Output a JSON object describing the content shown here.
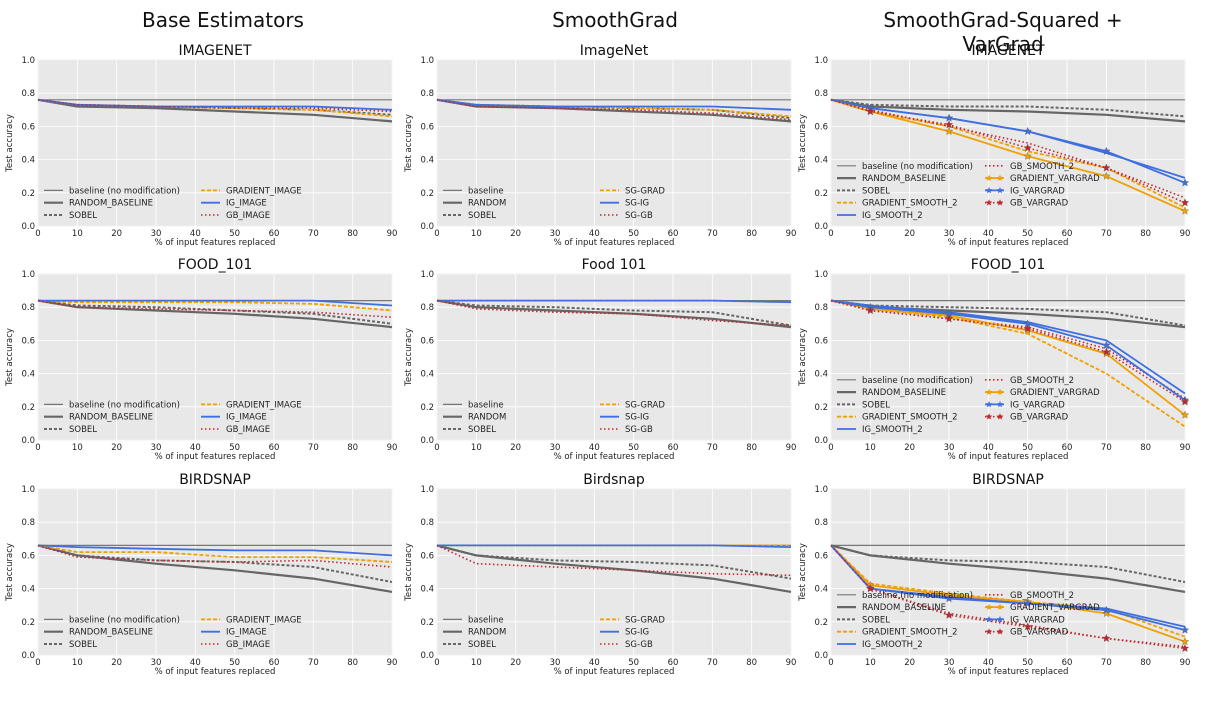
{
  "column_titles": [
    "Base Estimators",
    "SmoothGrad",
    "SmoothGrad-Squared + VarGrad"
  ],
  "chart_data": [
    {
      "type": "line",
      "title": "IMAGENET",
      "xlabel": "% of input features replaced",
      "ylabel": "Test accuracy",
      "x": [
        0,
        10,
        30,
        50,
        70,
        90
      ],
      "xticks": [
        0,
        10,
        20,
        30,
        40,
        50,
        60,
        70,
        80,
        90
      ],
      "ylim": [
        0,
        1.0
      ],
      "yticks": [
        0.0,
        0.2,
        0.4,
        0.6,
        0.8,
        1.0
      ],
      "legend_columns": 2,
      "series": [
        {
          "name": "baseline (no modification)",
          "style": "baseline",
          "values": [
            0.76,
            0.76,
            0.76,
            0.76,
            0.76,
            0.76
          ]
        },
        {
          "name": "RANDOM_BASELINE",
          "style": "random",
          "values": [
            0.76,
            0.72,
            0.71,
            0.69,
            0.67,
            0.63
          ]
        },
        {
          "name": "SOBEL",
          "style": "sobel",
          "values": [
            0.76,
            0.73,
            0.72,
            0.71,
            0.7,
            0.67
          ]
        },
        {
          "name": "GRADIENT_IMAGE",
          "style": "gradient",
          "values": [
            0.76,
            0.73,
            0.72,
            0.71,
            0.7,
            0.66
          ]
        },
        {
          "name": "IG_IMAGE",
          "style": "ig",
          "values": [
            0.76,
            0.73,
            0.72,
            0.72,
            0.72,
            0.7
          ]
        },
        {
          "name": "GB_IMAGE",
          "style": "gb",
          "values": [
            0.76,
            0.73,
            0.72,
            0.71,
            0.71,
            0.69
          ]
        }
      ]
    },
    {
      "type": "line",
      "title": "ImageNet",
      "xlabel": "% of input features replaced",
      "ylabel": "Test accuracy",
      "x": [
        0,
        10,
        30,
        50,
        70,
        90
      ],
      "xticks": [
        0,
        10,
        20,
        30,
        40,
        50,
        60,
        70,
        80,
        90
      ],
      "ylim": [
        0,
        1.0
      ],
      "yticks": [
        0.0,
        0.2,
        0.4,
        0.6,
        0.8,
        1.0
      ],
      "legend_columns": 2,
      "series": [
        {
          "name": "baseline",
          "style": "baseline",
          "values": [
            0.76,
            0.76,
            0.76,
            0.76,
            0.76,
            0.76
          ]
        },
        {
          "name": "RANDOM",
          "style": "random",
          "values": [
            0.76,
            0.72,
            0.71,
            0.69,
            0.67,
            0.63
          ]
        },
        {
          "name": "SOBEL",
          "style": "sobel",
          "values": [
            0.76,
            0.73,
            0.72,
            0.71,
            0.7,
            0.65
          ]
        },
        {
          "name": "SG-GRAD",
          "style": "gradient",
          "values": [
            0.76,
            0.73,
            0.72,
            0.71,
            0.7,
            0.66
          ]
        },
        {
          "name": "SG-IG",
          "style": "ig",
          "values": [
            0.76,
            0.73,
            0.72,
            0.72,
            0.72,
            0.7
          ]
        },
        {
          "name": "SG-GB",
          "style": "gb",
          "values": [
            0.76,
            0.72,
            0.71,
            0.7,
            0.68,
            0.64
          ]
        }
      ]
    },
    {
      "type": "line",
      "title": "IMAGENET",
      "xlabel": "% of input features replaced",
      "ylabel": "Test accuracy",
      "x": [
        0,
        10,
        30,
        50,
        70,
        90
      ],
      "xticks": [
        0,
        10,
        20,
        30,
        40,
        50,
        60,
        70,
        80,
        90
      ],
      "ylim": [
        0,
        1.0
      ],
      "yticks": [
        0.0,
        0.2,
        0.4,
        0.6,
        0.8,
        1.0
      ],
      "legend_columns": 2,
      "series": [
        {
          "name": "baseline (no modification)",
          "style": "baseline",
          "values": [
            0.76,
            0.76,
            0.76,
            0.76,
            0.76,
            0.76
          ]
        },
        {
          "name": "RANDOM_BASELINE",
          "style": "random",
          "values": [
            0.76,
            0.72,
            0.7,
            0.69,
            0.67,
            0.63
          ]
        },
        {
          "name": "SOBEL",
          "style": "sobel",
          "values": [
            0.76,
            0.73,
            0.72,
            0.72,
            0.7,
            0.66
          ]
        },
        {
          "name": "GRADIENT_SMOOTH_2",
          "style": "gradient",
          "values": [
            0.76,
            0.69,
            0.6,
            0.45,
            0.35,
            0.11
          ]
        },
        {
          "name": "IG_SMOOTH_2",
          "style": "ig",
          "values": [
            0.76,
            0.71,
            0.65,
            0.57,
            0.44,
            0.29
          ]
        },
        {
          "name": "GB_SMOOTH_2",
          "style": "gb",
          "values": [
            0.76,
            0.7,
            0.6,
            0.5,
            0.35,
            0.17
          ]
        },
        {
          "name": "GRADIENT_VARGRAD",
          "style": "gradient_star",
          "values": [
            0.76,
            0.69,
            0.57,
            0.42,
            0.3,
            0.09
          ]
        },
        {
          "name": "IG_VARGRAD",
          "style": "ig_star",
          "values": [
            0.76,
            0.71,
            0.65,
            0.57,
            0.45,
            0.26
          ]
        },
        {
          "name": "GB_VARGRAD",
          "style": "gb_star",
          "values": [
            0.76,
            0.69,
            0.61,
            0.47,
            0.35,
            0.14
          ]
        }
      ]
    },
    {
      "type": "line",
      "title": "FOOD_101",
      "xlabel": "% of input features replaced",
      "ylabel": "Test accuracy",
      "x": [
        0,
        10,
        30,
        50,
        70,
        90
      ],
      "xticks": [
        0,
        10,
        20,
        30,
        40,
        50,
        60,
        70,
        80,
        90
      ],
      "ylim": [
        0,
        1.0
      ],
      "yticks": [
        0.0,
        0.2,
        0.4,
        0.6,
        0.8,
        1.0
      ],
      "legend_columns": 2,
      "series": [
        {
          "name": "baseline (no modification)",
          "style": "baseline",
          "values": [
            0.84,
            0.84,
            0.84,
            0.84,
            0.84,
            0.84
          ]
        },
        {
          "name": "RANDOM_BASELINE",
          "style": "random",
          "values": [
            0.84,
            0.8,
            0.78,
            0.76,
            0.73,
            0.68
          ]
        },
        {
          "name": "SOBEL",
          "style": "sobel",
          "values": [
            0.84,
            0.81,
            0.8,
            0.78,
            0.76,
            0.7
          ]
        },
        {
          "name": "GRADIENT_IMAGE",
          "style": "gradient",
          "values": [
            0.84,
            0.83,
            0.83,
            0.83,
            0.82,
            0.78
          ]
        },
        {
          "name": "IG_IMAGE",
          "style": "ig",
          "values": [
            0.84,
            0.84,
            0.84,
            0.84,
            0.84,
            0.81
          ]
        },
        {
          "name": "GB_IMAGE",
          "style": "gb",
          "values": [
            0.84,
            0.8,
            0.79,
            0.78,
            0.77,
            0.74
          ]
        }
      ]
    },
    {
      "type": "line",
      "title": "Food 101",
      "xlabel": "% of input features replaced",
      "ylabel": "Test accuracy",
      "x": [
        0,
        10,
        30,
        50,
        70,
        90
      ],
      "xticks": [
        0,
        10,
        20,
        30,
        40,
        50,
        60,
        70,
        80,
        90
      ],
      "ylim": [
        0,
        1.0
      ],
      "yticks": [
        0.0,
        0.2,
        0.4,
        0.6,
        0.8,
        1.0
      ],
      "legend_columns": 2,
      "series": [
        {
          "name": "baseline",
          "style": "baseline",
          "values": [
            0.84,
            0.84,
            0.84,
            0.84,
            0.84,
            0.84
          ]
        },
        {
          "name": "RANDOM",
          "style": "random",
          "values": [
            0.84,
            0.8,
            0.78,
            0.76,
            0.73,
            0.68
          ]
        },
        {
          "name": "SOBEL",
          "style": "sobel",
          "values": [
            0.84,
            0.81,
            0.8,
            0.78,
            0.77,
            0.69
          ]
        },
        {
          "name": "SG-GRAD",
          "style": "gradient",
          "values": [
            0.84,
            0.84,
            0.84,
            0.84,
            0.84,
            0.83
          ]
        },
        {
          "name": "SG-IG",
          "style": "ig",
          "values": [
            0.84,
            0.84,
            0.84,
            0.84,
            0.84,
            0.83
          ]
        },
        {
          "name": "SG-GB",
          "style": "gb",
          "values": [
            0.84,
            0.79,
            0.77,
            0.76,
            0.72,
            0.69
          ]
        }
      ]
    },
    {
      "type": "line",
      "title": "FOOD_101",
      "xlabel": "% of input features replaced",
      "ylabel": "Test accuracy",
      "x": [
        0,
        10,
        30,
        50,
        70,
        90
      ],
      "xticks": [
        0,
        10,
        20,
        30,
        40,
        50,
        60,
        70,
        80,
        90
      ],
      "ylim": [
        0,
        1.0
      ],
      "yticks": [
        0.0,
        0.2,
        0.4,
        0.6,
        0.8,
        1.0
      ],
      "legend_columns": 2,
      "series": [
        {
          "name": "baseline (no modification)",
          "style": "baseline",
          "values": [
            0.84,
            0.84,
            0.84,
            0.84,
            0.84,
            0.84
          ]
        },
        {
          "name": "RANDOM_BASELINE",
          "style": "random",
          "values": [
            0.84,
            0.8,
            0.78,
            0.76,
            0.73,
            0.68
          ]
        },
        {
          "name": "SOBEL",
          "style": "sobel",
          "values": [
            0.84,
            0.81,
            0.8,
            0.79,
            0.77,
            0.69
          ]
        },
        {
          "name": "GRADIENT_SMOOTH_2",
          "style": "gradient",
          "values": [
            0.84,
            0.79,
            0.74,
            0.64,
            0.4,
            0.08
          ]
        },
        {
          "name": "IG_SMOOTH_2",
          "style": "ig",
          "values": [
            0.84,
            0.81,
            0.77,
            0.71,
            0.6,
            0.28
          ]
        },
        {
          "name": "GB_SMOOTH_2",
          "style": "gb",
          "values": [
            0.84,
            0.78,
            0.73,
            0.68,
            0.55,
            0.25
          ]
        },
        {
          "name": "GRADIENT_VARGRAD",
          "style": "gradient_star",
          "values": [
            0.84,
            0.79,
            0.75,
            0.66,
            0.52,
            0.15
          ]
        },
        {
          "name": "IG_VARGRAD",
          "style": "ig_star",
          "values": [
            0.84,
            0.8,
            0.76,
            0.7,
            0.57,
            0.24
          ]
        },
        {
          "name": "GB_VARGRAD",
          "style": "gb_star",
          "values": [
            0.84,
            0.78,
            0.73,
            0.67,
            0.53,
            0.23
          ]
        }
      ]
    },
    {
      "type": "line",
      "title": "BIRDSNAP",
      "xlabel": "% of input features replaced",
      "ylabel": "Test accuracy",
      "x": [
        0,
        10,
        30,
        50,
        70,
        90
      ],
      "xticks": [
        0,
        10,
        20,
        30,
        40,
        50,
        60,
        70,
        80,
        90
      ],
      "ylim": [
        0,
        1.0
      ],
      "yticks": [
        0.0,
        0.2,
        0.4,
        0.6,
        0.8,
        1.0
      ],
      "legend_columns": 2,
      "series": [
        {
          "name": "baseline (no modification)",
          "style": "baseline",
          "values": [
            0.66,
            0.66,
            0.66,
            0.66,
            0.66,
            0.66
          ]
        },
        {
          "name": "RANDOM_BASELINE",
          "style": "random",
          "values": [
            0.66,
            0.6,
            0.55,
            0.51,
            0.46,
            0.38
          ]
        },
        {
          "name": "SOBEL",
          "style": "sobel",
          "values": [
            0.66,
            0.6,
            0.57,
            0.56,
            0.53,
            0.44
          ]
        },
        {
          "name": "GRADIENT_IMAGE",
          "style": "gradient",
          "values": [
            0.66,
            0.62,
            0.62,
            0.59,
            0.59,
            0.56
          ]
        },
        {
          "name": "IG_IMAGE",
          "style": "ig",
          "values": [
            0.66,
            0.65,
            0.64,
            0.63,
            0.63,
            0.6
          ]
        },
        {
          "name": "GB_IMAGE",
          "style": "gb",
          "values": [
            0.66,
            0.59,
            0.57,
            0.56,
            0.57,
            0.53
          ]
        }
      ]
    },
    {
      "type": "line",
      "title": "Birdsnap",
      "xlabel": "% of input features replaced",
      "ylabel": "Test accuracy",
      "x": [
        0,
        10,
        30,
        50,
        70,
        90
      ],
      "xticks": [
        0,
        10,
        20,
        30,
        40,
        50,
        60,
        70,
        80,
        90
      ],
      "ylim": [
        0,
        1.0
      ],
      "yticks": [
        0.0,
        0.2,
        0.4,
        0.6,
        0.8,
        1.0
      ],
      "legend_columns": 2,
      "series": [
        {
          "name": "baseline",
          "style": "baseline",
          "values": [
            0.66,
            0.66,
            0.66,
            0.66,
            0.66,
            0.66
          ]
        },
        {
          "name": "RANDOM",
          "style": "random",
          "values": [
            0.66,
            0.6,
            0.55,
            0.51,
            0.46,
            0.38
          ]
        },
        {
          "name": "SOBEL",
          "style": "sobel",
          "values": [
            0.66,
            0.6,
            0.57,
            0.56,
            0.54,
            0.46
          ]
        },
        {
          "name": "SG-GRAD",
          "style": "gradient",
          "values": [
            0.66,
            0.66,
            0.66,
            0.66,
            0.66,
            0.66
          ]
        },
        {
          "name": "SG-IG",
          "style": "ig",
          "values": [
            0.66,
            0.66,
            0.66,
            0.66,
            0.66,
            0.65
          ]
        },
        {
          "name": "SG-GB",
          "style": "gb",
          "values": [
            0.66,
            0.55,
            0.53,
            0.51,
            0.49,
            0.48
          ]
        }
      ]
    },
    {
      "type": "line",
      "title": "BIRDSNAP",
      "xlabel": "% of input features replaced",
      "ylabel": "Test accuracy",
      "x": [
        0,
        10,
        30,
        50,
        70,
        90
      ],
      "xticks": [
        0,
        10,
        20,
        30,
        40,
        50,
        60,
        70,
        80,
        90
      ],
      "ylim": [
        0,
        1.0
      ],
      "yticks": [
        0.0,
        0.2,
        0.4,
        0.6,
        0.8,
        1.0
      ],
      "legend_columns": 2,
      "series": [
        {
          "name": "baseline (no modification)",
          "style": "baseline",
          "values": [
            0.66,
            0.66,
            0.66,
            0.66,
            0.66,
            0.66
          ]
        },
        {
          "name": "RANDOM_BASELINE",
          "style": "random",
          "values": [
            0.66,
            0.6,
            0.55,
            0.51,
            0.46,
            0.38
          ]
        },
        {
          "name": "SOBEL",
          "style": "sobel",
          "values": [
            0.66,
            0.6,
            0.57,
            0.56,
            0.53,
            0.44
          ]
        },
        {
          "name": "GRADIENT_SMOOTH_2",
          "style": "gradient",
          "values": [
            0.66,
            0.43,
            0.37,
            0.32,
            0.28,
            0.11
          ]
        },
        {
          "name": "IG_SMOOTH_2",
          "style": "ig",
          "values": [
            0.66,
            0.4,
            0.35,
            0.31,
            0.28,
            0.17
          ]
        },
        {
          "name": "GB_SMOOTH_2",
          "style": "gb",
          "values": [
            0.66,
            0.4,
            0.25,
            0.18,
            0.1,
            0.05
          ]
        },
        {
          "name": "GRADIENT_VARGRAD",
          "style": "gradient_star",
          "values": [
            0.66,
            0.42,
            0.36,
            0.32,
            0.25,
            0.08
          ]
        },
        {
          "name": "IG_VARGRAD",
          "style": "ig_star",
          "values": [
            0.66,
            0.4,
            0.34,
            0.31,
            0.27,
            0.15
          ]
        },
        {
          "name": "GB_VARGRAD",
          "style": "gb_star",
          "values": [
            0.66,
            0.4,
            0.24,
            0.17,
            0.1,
            0.04
          ]
        }
      ]
    }
  ],
  "colors": {
    "panel_bg": "#e8e8e8",
    "grid": "#ffffff",
    "baseline": "#777777",
    "random": "#666666",
    "sobel": "#666666",
    "gradient": "#f0a000",
    "ig": "#3f6fe0",
    "gb": "#c0282e"
  }
}
